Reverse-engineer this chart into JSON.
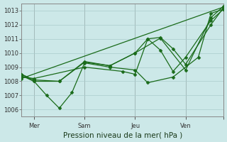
{
  "bg_color": "#cce8e8",
  "grid_color": "#aacccc",
  "line_color": "#1a6b1a",
  "marker_color": "#1a6b1a",
  "xlabel": "Pression niveau de la mer( hPa )",
  "ylim": [
    1005.5,
    1013.5
  ],
  "yticks": [
    1006,
    1007,
    1008,
    1009,
    1010,
    1011,
    1012,
    1013
  ],
  "xlim": [
    0,
    96
  ],
  "xtick_positions": [
    6,
    30,
    54,
    78,
    96
  ],
  "xtick_labels": [
    "Mer",
    "Sam",
    "Jeu",
    "Ven",
    ""
  ],
  "series": [
    {
      "x": [
        0,
        6,
        18,
        30,
        42,
        54,
        60,
        66,
        72,
        78,
        90,
        96
      ],
      "y": [
        1008.5,
        1008.1,
        1008.0,
        1009.4,
        1009.1,
        1010.0,
        1011.0,
        1010.2,
        1008.7,
        1009.7,
        1012.3,
        1013.1
      ]
    },
    {
      "x": [
        0,
        6,
        18,
        30,
        42,
        54,
        66,
        78,
        90,
        96
      ],
      "y": [
        1008.5,
        1008.0,
        1008.0,
        1009.35,
        1009.1,
        1010.0,
        1011.05,
        1008.8,
        1012.5,
        1013.3
      ]
    },
    {
      "x": [
        0,
        6,
        12,
        18,
        24,
        30,
        42,
        54,
        60,
        72,
        84,
        90,
        96
      ],
      "y": [
        1008.4,
        1008.0,
        1007.0,
        1006.1,
        1007.2,
        1009.3,
        1009.0,
        1008.8,
        1007.9,
        1008.3,
        1009.7,
        1012.8,
        1013.1
      ]
    },
    {
      "x": [
        0,
        6,
        30,
        48,
        54,
        60,
        66,
        72,
        78,
        90,
        96
      ],
      "y": [
        1008.3,
        1008.2,
        1009.0,
        1008.7,
        1008.5,
        1011.0,
        1011.1,
        1010.3,
        1009.2,
        1012.0,
        1013.2
      ]
    },
    {
      "x": [
        0,
        96
      ],
      "y": [
        1008.2,
        1013.25
      ]
    }
  ],
  "vline_x": [
    6,
    30,
    54,
    78
  ],
  "marker_size": 2.5,
  "linewidth": 0.9,
  "tick_fontsize": 6.0,
  "xlabel_fontsize": 7.5
}
